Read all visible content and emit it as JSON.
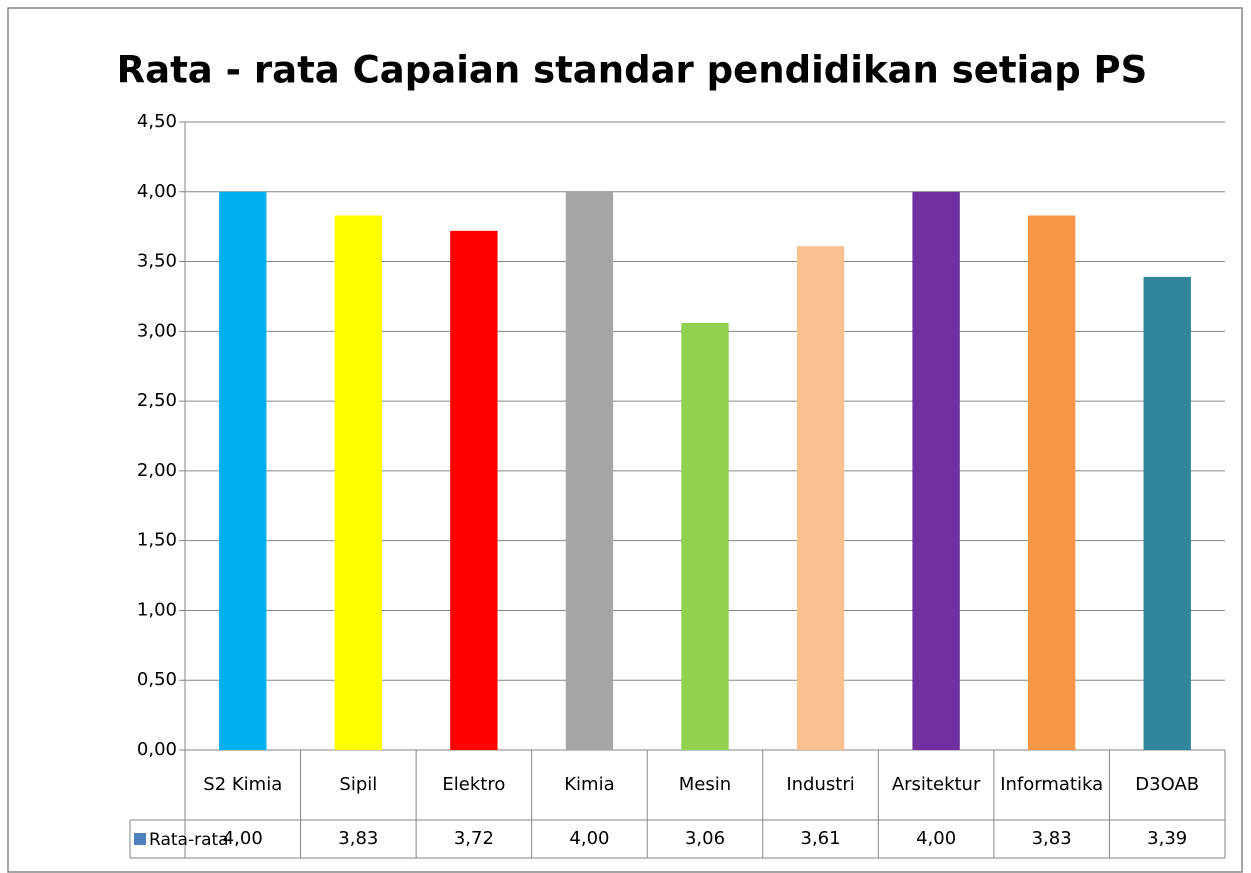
{
  "chart_data": {
    "type": "bar",
    "title": "Rata - rata Capaian standar pendidikan setiap PS",
    "categories": [
      "S2 Kimia",
      "Sipil",
      "Elektro",
      "Kimia",
      "Mesin",
      "Industri",
      "Arsitektur",
      "Informatika",
      "D3OAB"
    ],
    "series": [
      {
        "name": "Rata-rata",
        "color": "#4f81bd",
        "values": [
          4.0,
          3.83,
          3.72,
          4.0,
          3.06,
          3.61,
          4.0,
          3.83,
          3.39
        ],
        "value_labels": [
          "4,00",
          "3,83",
          "3,72",
          "4,00",
          "3,06",
          "3,61",
          "4,00",
          "3,83",
          "3,39"
        ],
        "point_colors": [
          "#00b0f0",
          "#ffff00",
          "#ff0000",
          "#a5a5a5",
          "#92d050",
          "#fac090",
          "#7030a0",
          "#f79646",
          "#31859c"
        ]
      }
    ],
    "ylim": [
      0,
      4.5
    ],
    "yticks": [
      {
        "value": 0,
        "label": "0,00"
      },
      {
        "value": 0.5,
        "label": "0,50"
      },
      {
        "value": 1,
        "label": "1,00"
      },
      {
        "value": 1.5,
        "label": "1,50"
      },
      {
        "value": 2,
        "label": "2,00"
      },
      {
        "value": 2.5,
        "label": "2,50"
      },
      {
        "value": 3,
        "label": "3,00"
      },
      {
        "value": 3.5,
        "label": "3,50"
      },
      {
        "value": 4,
        "label": "4,00"
      },
      {
        "value": 4.5,
        "label": "4,50"
      }
    ],
    "grid": true,
    "data_table": true
  }
}
